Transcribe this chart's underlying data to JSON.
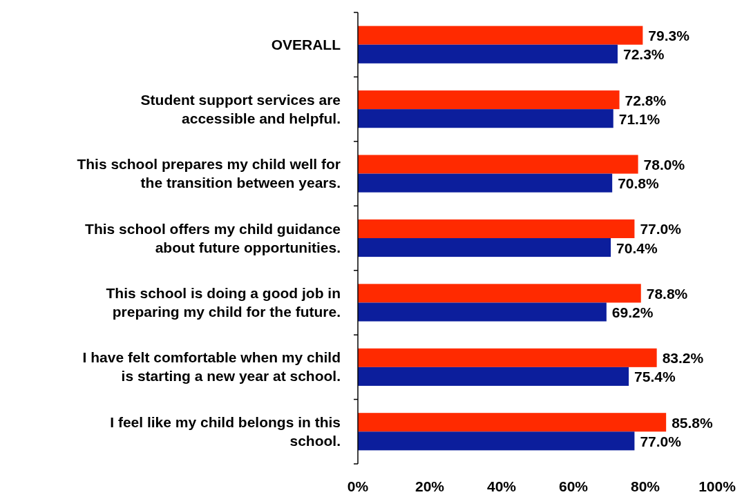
{
  "chart_data": {
    "type": "bar",
    "orientation": "horizontal",
    "categories": [
      "OVERALL",
      "Student support services are accessible and helpful.",
      "This school prepares my child well for the transition between years.",
      "This school offers my child guidance about future opportunities.",
      "This school is doing a good job in preparing my child for the future.",
      "I have felt comfortable when my child is starting a new year at school.",
      "I feel like my child belongs in this school."
    ],
    "series": [
      {
        "color": "#ff2a00",
        "values": [
          79.3,
          72.8,
          78.0,
          77.0,
          78.8,
          83.2,
          85.8
        ],
        "value_labels": [
          "79.3%",
          "72.8%",
          "78.0%",
          "77.0%",
          "78.8%",
          "83.2%",
          "85.8%"
        ]
      },
      {
        "color": "#0c1e9c",
        "values": [
          72.3,
          71.1,
          70.8,
          70.4,
          69.2,
          75.4,
          77.0
        ],
        "value_labels": [
          "72.3%",
          "71.1%",
          "70.8%",
          "70.4%",
          "69.2%",
          "75.4%",
          "77.0%"
        ]
      }
    ],
    "xlim": [
      0,
      100
    ],
    "xticks": [
      {
        "value": 0,
        "label": "0%"
      },
      {
        "value": 20,
        "label": "20%"
      },
      {
        "value": 40,
        "label": "40%"
      },
      {
        "value": 60,
        "label": "60%"
      },
      {
        "value": 80,
        "label": "80%"
      },
      {
        "value": 100,
        "label": "100%"
      }
    ],
    "grid": false
  }
}
